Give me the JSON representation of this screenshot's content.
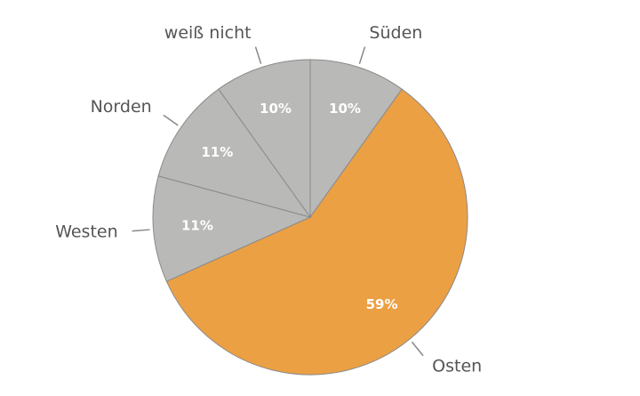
{
  "chart_data": {
    "type": "pie",
    "categories": [
      "Süden",
      "Osten",
      "Westen",
      "Norden",
      "weiß nicht"
    ],
    "values": [
      10,
      59,
      11,
      11,
      10
    ],
    "value_labels": [
      "10%",
      "59%",
      "11%",
      "11%",
      "10%"
    ],
    "colors": [
      "#b9b9b7",
      "#eca044",
      "#b9b9b7",
      "#b9b9b7",
      "#b9b9b7"
    ]
  }
}
